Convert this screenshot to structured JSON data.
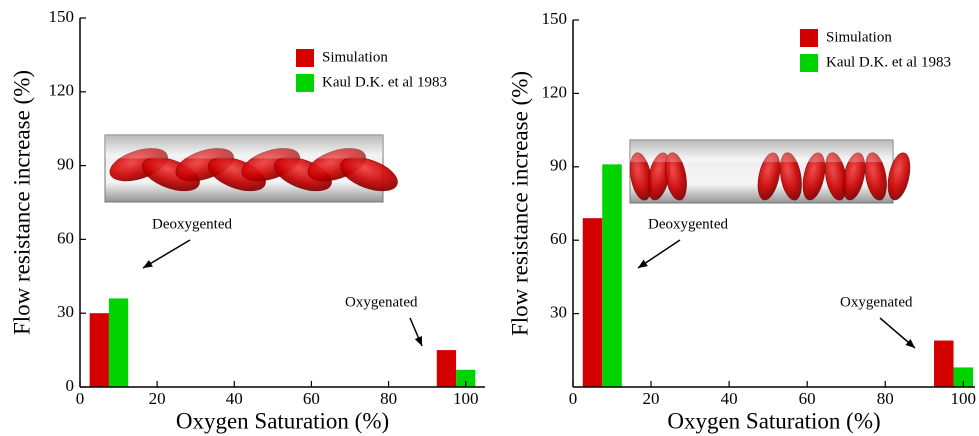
{
  "chart_data": [
    {
      "type": "bar",
      "xlabel": "Oxygen Saturation (%)",
      "ylabel": "Flow resistance increase (%)",
      "xlim": [
        0,
        105
      ],
      "ylim": [
        0,
        150
      ],
      "xticks": [
        0,
        20,
        40,
        60,
        80,
        100
      ],
      "yticks": [
        0,
        30,
        60,
        90,
        120,
        150
      ],
      "series": [
        {
          "name": "Simulation",
          "color": "#d40000",
          "x": [
            5,
            95
          ],
          "values": [
            30,
            15
          ]
        },
        {
          "name": "Kaul D.K. et al 1983",
          "color": "#00d400",
          "x": [
            10,
            100
          ],
          "values": [
            36,
            7
          ]
        }
      ],
      "annotations": [
        "Deoxygented",
        "Oxygenated"
      ]
    },
    {
      "type": "bar",
      "xlabel": "Oxygen Saturation (%)",
      "ylabel": "Flow resistance increase (%)",
      "xlim": [
        0,
        103
      ],
      "ylim": [
        0,
        150
      ],
      "xticks": [
        0,
        20,
        40,
        60,
        80,
        100
      ],
      "yticks": [
        30,
        60,
        90,
        120,
        150
      ],
      "series": [
        {
          "name": "Simulation",
          "color": "#d40000",
          "x": [
            5,
            95
          ],
          "values": [
            69,
            19
          ]
        },
        {
          "name": "Kaul D.K. et al 1983",
          "color": "#00d400",
          "x": [
            10,
            100
          ],
          "values": [
            91,
            8
          ]
        }
      ],
      "annotations": [
        "Deoxygented",
        "Oxygenated"
      ]
    }
  ]
}
